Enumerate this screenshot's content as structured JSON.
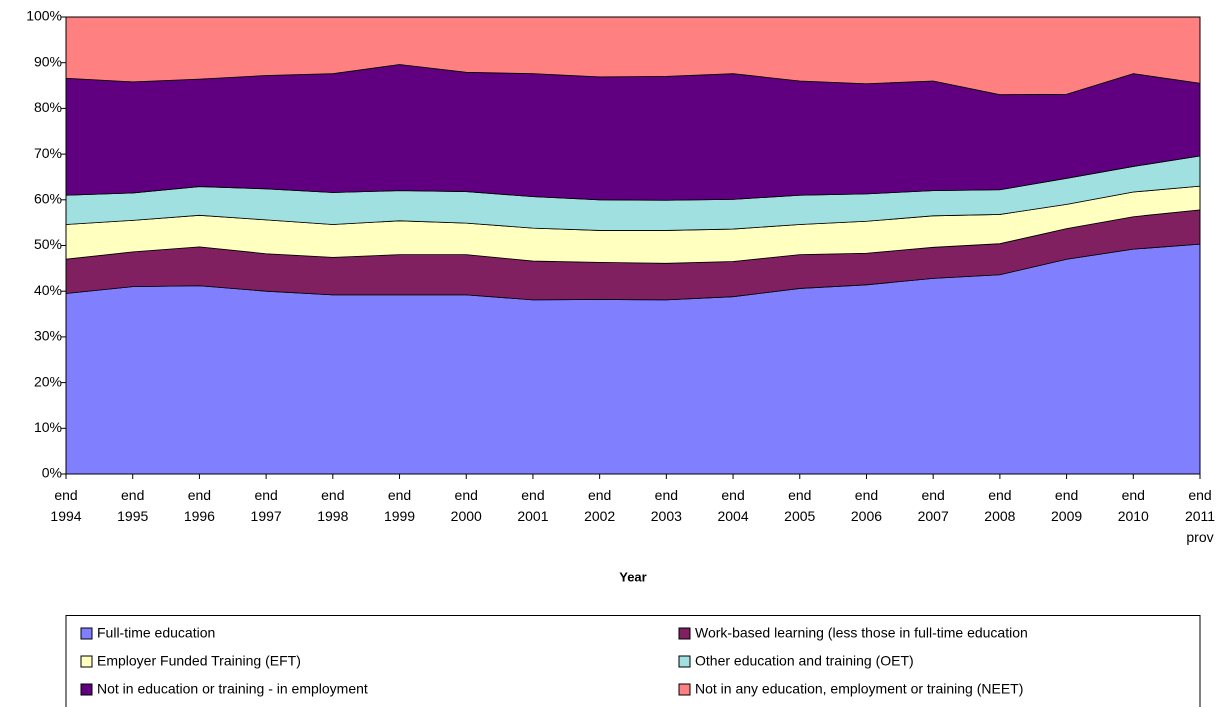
{
  "chart_data": {
    "type": "stacked_area",
    "x_label": "Year",
    "categories": [
      "end 1994",
      "end 1995",
      "end 1996",
      "end 1997",
      "end 1998",
      "end 1999",
      "end 2000",
      "end 2001",
      "end 2002",
      "end 2003",
      "end 2004",
      "end 2005",
      "end 2006",
      "end 2007",
      "end 2008",
      "end 2009",
      "end 2010",
      "end 2011 prov"
    ],
    "series": [
      {
        "name": "Full-time education",
        "color": "#8080ff",
        "values": [
          39.5,
          41,
          41.2,
          40,
          39.2,
          39.2,
          39.2,
          38.1,
          38.2,
          38.1,
          38.8,
          40.6,
          41.4,
          42.8,
          43.6,
          47,
          49.2,
          50.3
        ]
      },
      {
        "name": "Work-based learning (less those in full-time education",
        "color": "#802060",
        "values": [
          7.5,
          7.6,
          8.5,
          8.2,
          8.2,
          8.8,
          8.8,
          8.5,
          8.1,
          8.0,
          7.7,
          7.4,
          6.9,
          6.8,
          6.8,
          6.7,
          7.1,
          7.5
        ]
      },
      {
        "name": "Employer Funded Training (EFT)",
        "color": "#ffffc0",
        "values": [
          7.6,
          6.9,
          6.9,
          7.4,
          7.2,
          7.4,
          6.9,
          7.2,
          7.0,
          7.2,
          7.1,
          6.6,
          7.0,
          6.9,
          6.4,
          5.3,
          5.4,
          5.2
        ]
      },
      {
        "name": "Other education and training (OET)",
        "color": "#a0e0e0",
        "values": [
          6.4,
          6.0,
          6.3,
          6.8,
          7.0,
          6.6,
          6.9,
          6.9,
          6.7,
          6.6,
          6.5,
          6.4,
          6.0,
          5.5,
          5.4,
          5.7,
          5.6,
          6.6
        ]
      },
      {
        "name": "Not in education or training - in employment",
        "color": "#600080",
        "values": [
          25.6,
          24.3,
          23.5,
          24.8,
          26.0,
          27.6,
          26.1,
          26.9,
          26.9,
          27.1,
          27.5,
          25.0,
          24.1,
          24.0,
          20.8,
          18.4,
          20.3,
          15.9
        ]
      },
      {
        "name": "Not in any education, employment or training (NEET)",
        "color": "#ff8080",
        "values": [
          13.4,
          14.2,
          13.6,
          12.8,
          12.4,
          10.4,
          12.1,
          12.4,
          13.1,
          13.0,
          12.4,
          14.0,
          14.6,
          14.0,
          17.0,
          16.9,
          12.4,
          14.5
        ]
      }
    ],
    "ylim": [
      0,
      100
    ],
    "yticks": [
      {
        "value": 0,
        "label": "0%"
      },
      {
        "value": 10,
        "label": "10%"
      },
      {
        "value": 20,
        "label": "20%"
      },
      {
        "value": 30,
        "label": "30%"
      },
      {
        "value": 40,
        "label": "40%"
      },
      {
        "value": 50,
        "label": "50%"
      },
      {
        "value": 60,
        "label": "60%"
      },
      {
        "value": 70,
        "label": "70%"
      },
      {
        "value": 80,
        "label": "80%"
      },
      {
        "value": 90,
        "label": "90%"
      },
      {
        "value": 100,
        "label": "100%"
      }
    ],
    "grid": false
  }
}
